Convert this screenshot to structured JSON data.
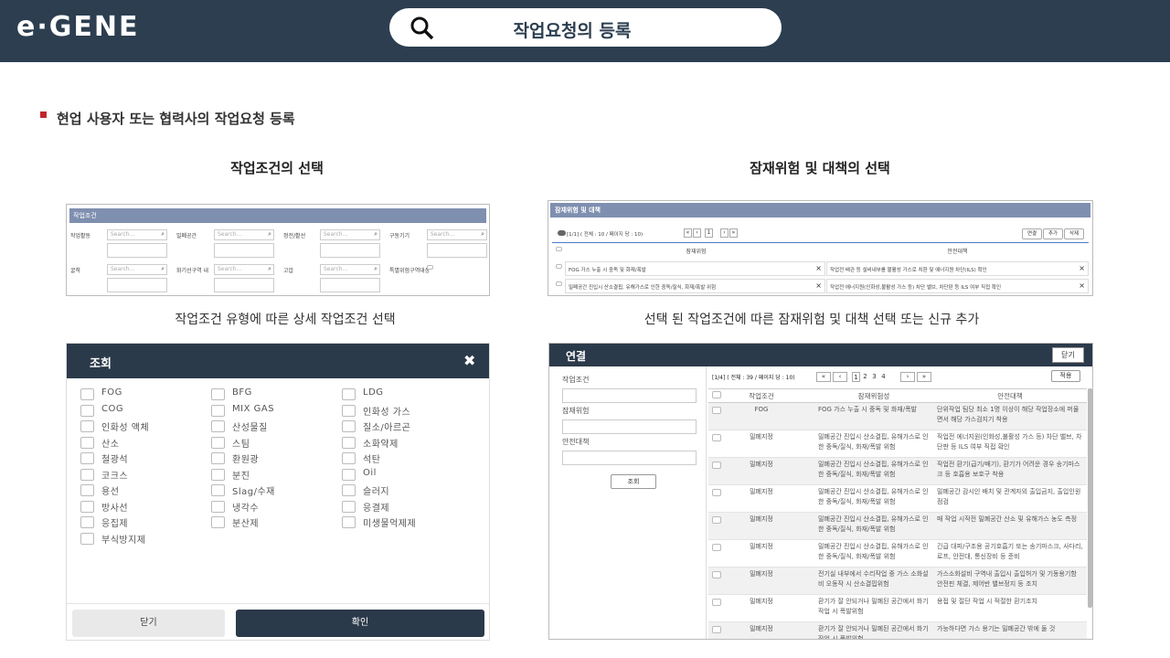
{
  "header": {
    "logo": "e·GENE",
    "search_title": "작업요청의 등록"
  },
  "section_title": "현업 사용자 또는 협력사의 작업요청 등록",
  "left_title": "작업조건의 선택",
  "right_title": "잠재위험 및 대책의 선택",
  "left_caption": "작업조건 유형에 따른 상세 작업조건 선택",
  "right_caption": "선택 된 작업조건에 따른 잠재위험 및 대책 선택 또는 신규 추가",
  "condition_panel": {
    "title": "작업조건",
    "placeholder": "Search...",
    "fields": [
      "작업활동",
      "밀폐공간",
      "정전/활선",
      "구동기기",
      "굴착",
      "화기선구역 내",
      "고압"
    ],
    "checkbox_field": "특별위험구역대상"
  },
  "risk_panel": {
    "title": "잠재위험 및 대책",
    "pager": "[1/1] ( 전체 : 10 / 페이지 당 : 10)",
    "page": 1,
    "buttons": [
      "연결",
      "추가",
      "삭제"
    ],
    "columns": [
      "잠재위험",
      "안전대책"
    ],
    "rows": [
      [
        "FOG 가스 누출 시 중독 및 화재/폭발",
        "작업전 배관 등 설비내부를 불활성 가스로 치환 및 에너지원 차단(ILS) 확인"
      ],
      [
        "밀폐공간 진입시 산소결핍, 유해가스로 인한 중독/질식, 화재/폭발 위험",
        "작업전 에너지원(인화성,불활성 가스 등) 차단 밸브, 차단판 등 ILS 여부 직접 확인"
      ]
    ]
  },
  "lookup_modal": {
    "title": "조회",
    "columns": [
      [
        "FOG",
        "COG",
        "인화성 액체",
        "산소",
        "철광석",
        "코크스",
        "용선",
        "방사선",
        "응집제",
        "부식방지제"
      ],
      [
        "BFG",
        "MIX GAS",
        "산성물질",
        "스팀",
        "환원광",
        "분진",
        "Slag/수재",
        "냉각수",
        "분산제"
      ],
      [
        "LDG",
        "인화성 가스",
        "질소/아르곤",
        "소화약제",
        "석탄",
        "Oil",
        "슬러지",
        "응결제",
        "미생물억제제"
      ]
    ],
    "close": "닫기",
    "confirm": "확인"
  },
  "link_panel": {
    "title": "연결",
    "close": "닫기",
    "filters": [
      "작업조건",
      "잠재위험",
      "안전대책"
    ],
    "search": "조회",
    "pager": "[1/4] ( 전체 : 39 / 페이지 당 : 10)",
    "pages": [
      1,
      2,
      3,
      4
    ],
    "apply": "적용",
    "columns": [
      "작업조건",
      "잠재위험성",
      "안전대책"
    ],
    "rows": [
      [
        "FOG",
        "FOG 가스 누출 시 중독 및 화재/폭발",
        "단위작업 팀당 최소 1명 이상이 해당 작업장소에 머물면서 해당 가스검지기 착용"
      ],
      [
        "밀폐지정",
        "밀폐공간 진입시 산소결핍, 유해가스로 인한 중독/질식, 화재/폭발 위험",
        "작업전 에너지원(인화성,불활성 가스 등) 차단 밸브, 차단판 등 ILS 여부 직접 확인"
      ],
      [
        "밀폐지정",
        "밀폐공간 진입시 산소결핍, 유해가스로 인한 중독/질식, 화재/폭발 위험",
        "작업전 환기(급기/배기), 환기가 어려운 경우 송기마스크 등 호흡용 보호구 착용"
      ],
      [
        "밀폐지정",
        "밀폐공간 진입시 산소결핍, 유해가스로 인한 중독/질식, 화재/폭발 위험",
        "밀폐공간 감시인 배치 및 관계자외 출입금지, 출입인원 점검"
      ],
      [
        "밀폐지정",
        "밀폐공간 진입시 산소결핍, 유해가스로 인한 중독/질식, 화재/폭발 위험",
        "매 작업 시작전 밀폐공간 산소 및 유해가스 농도 측정"
      ],
      [
        "밀폐지정",
        "밀폐공간 진입시 산소결핍, 유해가스로 인한 중독/질식, 화재/폭발 위험",
        "긴급 대피/구조용 공기호흡기 또는 송기마스크, 사다리, 로프, 안전대, 통신장비 등 준비"
      ],
      [
        "밀폐지정",
        "전기실 내부에서 수리작업 중 가스 소화설비 오동작 시 산소결핍위험",
        "가스소화설비 구역내 출입시 출입허가 및 기동용기함 안전핀 체결, 제어반 밸브정지 등 조치"
      ],
      [
        "밀폐지정",
        "환기가 잘 안되거나 밀폐된 공간에서 화기작업 시 폭발위험",
        "용접 및 절단 작업 시 적절한 환기조치"
      ],
      [
        "밀폐지정",
        "환기가 잘 안되거나 밀폐된 공간에서 화기작업 시 폭발위험",
        "가능하다면 가스 용기는 밀폐공간 밖에 둘 것"
      ]
    ]
  }
}
